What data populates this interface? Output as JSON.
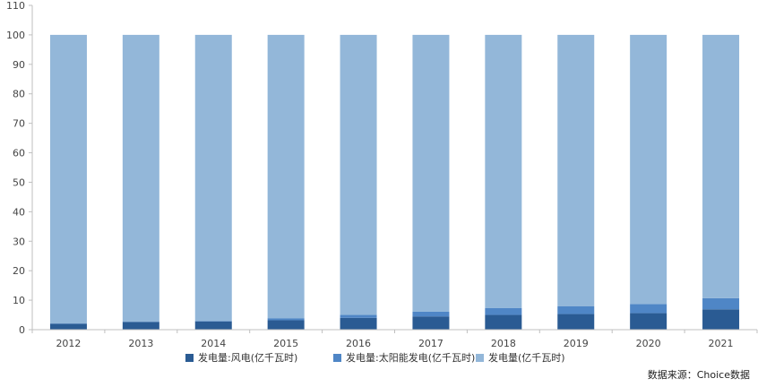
{
  "chart_data": {
    "type": "bar",
    "stacked": true,
    "categories": [
      "2012",
      "2013",
      "2014",
      "2015",
      "2016",
      "2017",
      "2018",
      "2019",
      "2020",
      "2021"
    ],
    "series": [
      {
        "name": "发电量:风电(亿千瓦时)",
        "color": "#2a5b93",
        "values": [
          2.0,
          2.6,
          2.8,
          3.2,
          4.0,
          4.5,
          5.0,
          5.3,
          5.6,
          6.9
        ]
      },
      {
        "name": "发电量:太阳能发电(亿千瓦时)",
        "color": "#4f86c6",
        "values": [
          0.1,
          0.1,
          0.2,
          0.7,
          1.0,
          1.6,
          2.3,
          2.6,
          3.1,
          3.8
        ]
      },
      {
        "name": "发电量(亿千瓦时)",
        "color": "#93b7d9",
        "values": [
          97.9,
          97.3,
          97.0,
          96.1,
          95.0,
          93.9,
          92.7,
          92.1,
          91.3,
          89.3
        ]
      }
    ],
    "ylim": [
      0,
      110
    ],
    "yticks": [
      0,
      10,
      20,
      30,
      40,
      50,
      60,
      70,
      80,
      90,
      100,
      110
    ],
    "grid": false,
    "legend": "bottom",
    "source": "数据来源：Choice数据"
  }
}
